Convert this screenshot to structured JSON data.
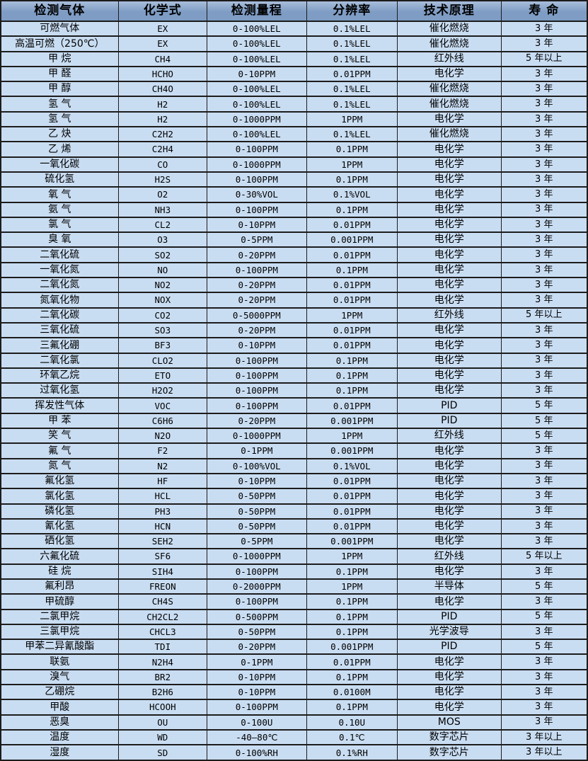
{
  "table": {
    "headers": [
      "检测气体",
      "化学式",
      "检测量程",
      "分辨率",
      "技术原理",
      "寿 命"
    ],
    "rows": [
      [
        "可燃气体",
        "EX",
        "0-100%LEL",
        "0.1%LEL",
        "催化燃烧",
        "3 年"
      ],
      [
        "高温可燃（250℃）",
        "EX",
        "0-100%LEL",
        "0.1%LEL",
        "催化燃烧",
        "3 年"
      ],
      [
        "甲 烷",
        "CH4",
        "0-100%LEL",
        "0.1%LEL",
        "红外线",
        "5 年以上"
      ],
      [
        "甲 醛",
        "HCHO",
        "0-10PPM",
        "0.01PPM",
        "电化学",
        "3 年"
      ],
      [
        "甲 醇",
        "CH4O",
        "0-100%LEL",
        "0.1%LEL",
        "催化燃烧",
        "3 年"
      ],
      [
        "氢 气",
        "H2",
        "0-100%LEL",
        "0.1%LEL",
        "催化燃烧",
        "3 年"
      ],
      [
        "氢 气",
        "H2",
        "0-1000PPM",
        "1PPM",
        "电化学",
        "3 年"
      ],
      [
        "乙 炔",
        "C2H2",
        "0-100%LEL",
        "0.1%LEL",
        "催化燃烧",
        "3 年"
      ],
      [
        "乙 烯",
        "C2H4",
        "0-100PPM",
        "0.1PPM",
        "电化学",
        "3 年"
      ],
      [
        "一氧化碳",
        "CO",
        "0-1000PPM",
        "1PPM",
        "电化学",
        "3 年"
      ],
      [
        "硫化氢",
        "H2S",
        "0-100PPM",
        "0.1PPM",
        "电化学",
        "3 年"
      ],
      [
        "氧 气",
        "O2",
        "0-30%VOL",
        "0.1%VOL",
        "电化学",
        "3 年"
      ],
      [
        "氨 气",
        "NH3",
        "0-100PPM",
        "0.1PPM",
        "电化学",
        "3 年"
      ],
      [
        "氯 气",
        "CL2",
        "0-10PPM",
        "0.01PPM",
        "电化学",
        "3 年"
      ],
      [
        "臭 氧",
        "O3",
        "0-5PPM",
        "0.001PPM",
        "电化学",
        "3 年"
      ],
      [
        "二氧化硫",
        "SO2",
        "0-20PPM",
        "0.01PPM",
        "电化学",
        "3 年"
      ],
      [
        "一氧化氮",
        "NO",
        "0-100PPM",
        "0.1PPM",
        "电化学",
        "3 年"
      ],
      [
        "二氧化氮",
        "NO2",
        "0-20PPM",
        "0.01PPM",
        "电化学",
        "3 年"
      ],
      [
        "氮氧化物",
        "NOX",
        "0-20PPM",
        "0.01PPM",
        "电化学",
        "3 年"
      ],
      [
        "二氧化碳",
        "CO2",
        "0-5000PPM",
        "1PPM",
        "红外线",
        "5 年以上"
      ],
      [
        "三氧化硫",
        "SO3",
        "0-20PPM",
        "0.01PPM",
        "电化学",
        "3 年"
      ],
      [
        "三氟化硼",
        "BF3",
        "0-10PPM",
        "0.01PPM",
        "电化学",
        "3 年"
      ],
      [
        "二氧化氯",
        "CLO2",
        "0-100PPM",
        "0.1PPM",
        "电化学",
        "3 年"
      ],
      [
        "环氧乙烷",
        "ETO",
        "0-100PPM",
        "0.1PPM",
        "电化学",
        "3 年"
      ],
      [
        "过氧化氢",
        "H2O2",
        "0-100PPM",
        "0.1PPM",
        "电化学",
        "3 年"
      ],
      [
        "挥发性气体",
        "VOC",
        "0-100PPM",
        "0.01PPM",
        "PID",
        "5 年"
      ],
      [
        "甲 苯",
        "C6H6",
        "0-20PPM",
        "0.001PPM",
        "PID",
        "5 年"
      ],
      [
        "笑 气",
        "N2O",
        "0-1000PPM",
        "1PPM",
        "红外线",
        "5 年"
      ],
      [
        "氟 气",
        "F2",
        "0-1PPM",
        "0.001PPM",
        "电化学",
        "3 年"
      ],
      [
        "氮 气",
        "N2",
        "0-100%VOL",
        "0.1%VOL",
        "电化学",
        "3 年"
      ],
      [
        "氟化氢",
        "HF",
        "0-10PPM",
        "0.01PPM",
        "电化学",
        "3 年"
      ],
      [
        "氯化氢",
        "HCL",
        "0-50PPM",
        "0.01PPM",
        "电化学",
        "3 年"
      ],
      [
        "磷化氢",
        "PH3",
        "0-50PPM",
        "0.01PPM",
        "电化学",
        "3 年"
      ],
      [
        "氰化氢",
        "HCN",
        "0-50PPM",
        "0.01PPM",
        "电化学",
        "3 年"
      ],
      [
        "硒化氢",
        "SEH2",
        "0-5PPM",
        "0.001PPM",
        "电化学",
        "3 年"
      ],
      [
        "六氟化硫",
        "SF6",
        "0-1000PPM",
        "1PPM",
        "红外线",
        "5 年以上"
      ],
      [
        "硅 烷",
        "SIH4",
        "0-100PPM",
        "0.1PPM",
        "电化学",
        "3 年"
      ],
      [
        "氟利昂",
        "FREON",
        "0-2000PPM",
        "1PPM",
        "半导体",
        "5 年"
      ],
      [
        "甲硫醇",
        "CH4S",
        "0-100PPM",
        "0.1PPM",
        "电化学",
        "3 年"
      ],
      [
        "二氯甲烷",
        "CH2CL2",
        "0-500PPM",
        "0.1PPM",
        "PID",
        "5 年"
      ],
      [
        "三氯甲烷",
        "CHCL3",
        "0-50PPM",
        "0.1PPM",
        "光学波导",
        "3 年"
      ],
      [
        "甲苯二异氰酸酯",
        "TDI",
        "0-20PPM",
        "0.001PPM",
        "PID",
        "5 年"
      ],
      [
        "联氨",
        "N2H4",
        "0-1PPM",
        "0.01PPM",
        "电化学",
        "3 年"
      ],
      [
        "溴气",
        "BR2",
        "0-10PPM",
        "0.1PPM",
        "电化学",
        "3 年"
      ],
      [
        "乙硼烷",
        "B2H6",
        "0-10PPM",
        "0.0100M",
        "电化学",
        "3 年"
      ],
      [
        "甲酸",
        "HCOOH",
        "0-100PPM",
        "0.1PPM",
        "电化学",
        "3 年"
      ],
      [
        "恶臭",
        "OU",
        "0-100U",
        "0.10U",
        "MOS",
        "3 年"
      ],
      [
        "温度",
        "WD",
        "-40—80℃",
        "0.1℃",
        "数字芯片",
        "3 年以上"
      ],
      [
        "湿度",
        "SD",
        "0-100%RH",
        "0.1%RH",
        "数字芯片",
        "3 年以上"
      ]
    ],
    "colors": {
      "header_bg": "#7e9cc4",
      "header_bg_light": "#a9bedb",
      "row_bg": "#c9ddf2",
      "border": "#1c1c1c",
      "text": "#000000"
    }
  }
}
